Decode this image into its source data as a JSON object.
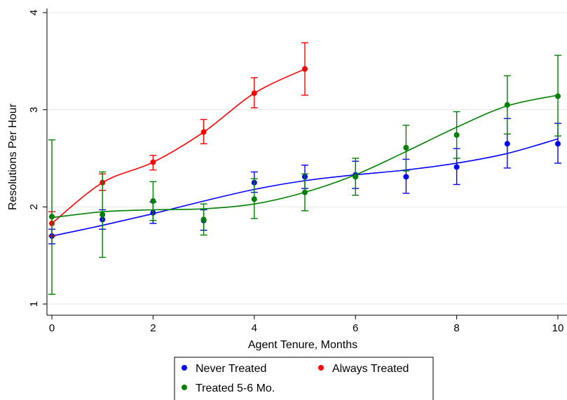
{
  "chart_data": {
    "type": "scatter",
    "title": "",
    "xlabel": "Agent Tenure, Months",
    "ylabel": "Resolutions Per Hour",
    "xlim": [
      0,
      10
    ],
    "ylim": [
      1,
      4
    ],
    "xticks": [
      "0",
      "2",
      "4",
      "6",
      "8",
      "10"
    ],
    "yticks": [
      "1",
      "2",
      "3",
      "4"
    ],
    "grid": "horizontal",
    "legend_position": "bottom",
    "series": [
      {
        "name": "Never Treated",
        "color": "#0000ff",
        "x": [
          0,
          1,
          2,
          3,
          4,
          5,
          6,
          7,
          8,
          9,
          10
        ],
        "y": [
          1.7,
          1.87,
          1.94,
          1.86,
          2.25,
          2.31,
          2.33,
          2.31,
          2.41,
          2.65,
          2.65
        ],
        "ci_low": [
          1.62,
          1.77,
          1.83,
          1.76,
          2.15,
          2.19,
          2.19,
          2.14,
          2.23,
          2.4,
          2.45
        ],
        "ci_high": [
          1.77,
          1.97,
          2.05,
          1.97,
          2.36,
          2.43,
          2.47,
          2.49,
          2.6,
          2.91,
          2.86
        ],
        "fit_y": [
          1.7,
          1.81,
          1.93,
          2.06,
          2.18,
          2.27,
          2.33,
          2.38,
          2.45,
          2.55,
          2.7
        ]
      },
      {
        "name": "Always Treated",
        "color": "#ff0000",
        "x": [
          0,
          1,
          2,
          3,
          4,
          5
        ],
        "y": [
          1.83,
          2.25,
          2.46,
          2.77,
          3.17,
          3.42
        ],
        "ci_low": [
          1.7,
          2.17,
          2.38,
          2.65,
          3.02,
          3.15
        ],
        "ci_high": [
          1.95,
          2.34,
          2.53,
          2.9,
          3.33,
          3.69
        ],
        "fit_y": [
          1.83,
          2.25,
          2.46,
          2.77,
          3.17,
          3.42
        ]
      },
      {
        "name": "Treated 5-6 Mo.",
        "color": "#008000",
        "x": [
          0,
          1,
          2,
          3,
          4,
          5,
          6,
          7,
          8,
          9,
          10
        ],
        "y": [
          1.9,
          1.92,
          2.06,
          1.87,
          2.08,
          2.15,
          2.31,
          2.61,
          2.74,
          3.05,
          3.14
        ],
        "ci_low": [
          1.1,
          1.48,
          1.86,
          1.71,
          1.88,
          1.96,
          2.12,
          2.37,
          2.5,
          2.75,
          2.73
        ],
        "ci_high": [
          2.69,
          2.36,
          2.26,
          2.03,
          2.29,
          2.34,
          2.5,
          2.84,
          2.98,
          3.35,
          3.56
        ],
        "fit_y": [
          1.89,
          1.95,
          1.97,
          1.98,
          2.03,
          2.15,
          2.33,
          2.57,
          2.82,
          3.04,
          3.15
        ]
      }
    ]
  }
}
